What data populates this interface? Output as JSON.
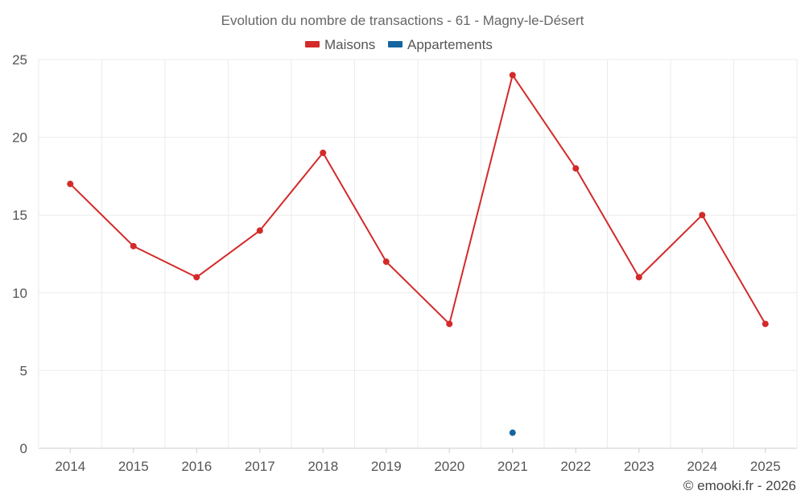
{
  "chart_data": {
    "type": "line",
    "title": "Evolution du nombre de transactions - 61 - Magny-le-Désert",
    "x": [
      "2014",
      "2015",
      "2016",
      "2017",
      "2018",
      "2019",
      "2020",
      "2021",
      "2022",
      "2023",
      "2024",
      "2025"
    ],
    "ylim": [
      0,
      25
    ],
    "yticks": [
      0,
      5,
      10,
      15,
      20,
      25
    ],
    "grid": true,
    "legend_position": "top-center",
    "series": [
      {
        "name": "Maisons",
        "color": "#d32a2a",
        "values": [
          17,
          13,
          11,
          14,
          19,
          12,
          8,
          24,
          18,
          11,
          15,
          8
        ]
      },
      {
        "name": "Appartements",
        "color": "#1565a0",
        "values": [
          null,
          null,
          null,
          null,
          null,
          null,
          null,
          1,
          null,
          null,
          null,
          null
        ]
      }
    ],
    "credit": "© emooki.fr - 2026"
  }
}
